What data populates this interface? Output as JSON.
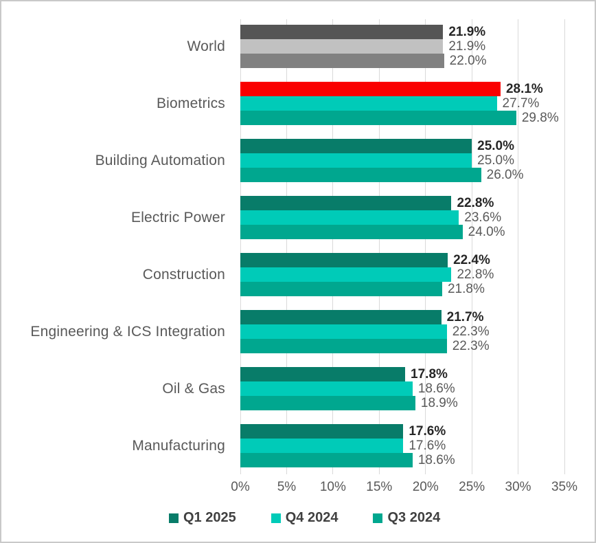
{
  "chart_data": {
    "type": "bar",
    "orientation": "horizontal",
    "title": "",
    "xlabel": "",
    "ylabel": "",
    "xlim": [
      0,
      35
    ],
    "xtick_step": 5,
    "xticks": [
      "0%",
      "5%",
      "10%",
      "15%",
      "20%",
      "25%",
      "30%",
      "35%"
    ],
    "grid": "vertical",
    "legend_position": "bottom",
    "categories": [
      "World",
      "Biometrics",
      "Building Automation",
      "Electric Power",
      "Construction",
      "Engineering & ICS Integration",
      "Oil & Gas",
      "Manufacturing"
    ],
    "series": [
      {
        "name": "Q1 2025",
        "values": [
          21.9,
          28.1,
          25.0,
          22.8,
          22.4,
          21.7,
          17.8,
          17.6
        ]
      },
      {
        "name": "Q4 2024",
        "values": [
          21.9,
          27.7,
          25.0,
          23.6,
          22.8,
          22.3,
          18.6,
          17.6
        ]
      },
      {
        "name": "Q3 2024",
        "values": [
          22.0,
          29.8,
          26.0,
          24.0,
          21.8,
          22.3,
          18.9,
          18.6
        ]
      }
    ],
    "data_labels": [
      [
        "21.9%",
        "21.9%",
        "22.0%"
      ],
      [
        "28.1%",
        "27.7%",
        "29.8%"
      ],
      [
        "25.0%",
        "25.0%",
        "26.0%"
      ],
      [
        "22.8%",
        "23.6%",
        "24.0%"
      ],
      [
        "22.4%",
        "22.8%",
        "21.8%"
      ],
      [
        "21.7%",
        "22.3%",
        "22.3%"
      ],
      [
        "17.8%",
        "18.6%",
        "18.9%"
      ],
      [
        "17.6%",
        "17.6%",
        "18.6%"
      ]
    ],
    "series_colors": [
      "#087c69",
      "#00cbb8",
      "#00a78f"
    ],
    "bar_color_overrides": {
      "0": [
        "#555555",
        "#c1c1c1",
        "#818181"
      ],
      "1": [
        "#fa0000",
        null,
        null
      ]
    },
    "legend": [
      {
        "label": "Q1 2025",
        "color": "#087c69"
      },
      {
        "label": "Q4 2024",
        "color": "#00cbb8"
      },
      {
        "label": "Q3 2024",
        "color": "#00a78f"
      }
    ],
    "style": {
      "gridline_color": "#d9d9d9",
      "category_label_color": "#595959",
      "axis_label_color": "#595959",
      "value_label_color": "#595959",
      "value_label_bold_color": "#262626",
      "legend_label_color": "#404040",
      "frame_border_color": "#c9c9c9"
    }
  }
}
